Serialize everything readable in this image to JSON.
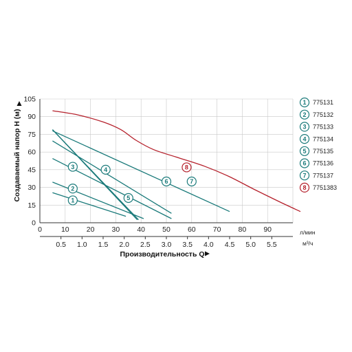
{
  "chart_data": {
    "type": "line",
    "title": "",
    "ylabel": "Создаваемый напор H (м)",
    "xlabel": "Производительность Q",
    "ylim": [
      0,
      105
    ],
    "xlim": [
      0,
      100
    ],
    "yticks": [
      "0",
      "15",
      "30",
      "45",
      "60",
      "75",
      "90",
      "105"
    ],
    "xticks_primary": {
      "unit": "л/мин",
      "values": [
        0,
        10,
        20,
        30,
        40,
        50,
        60,
        70,
        80,
        90
      ],
      "labels": [
        "0",
        "10",
        "20",
        "30",
        "40",
        "50",
        "60",
        "70",
        "80",
        "90"
      ]
    },
    "xticks_secondary": {
      "unit": "м³/ч",
      "values": [
        0.5,
        1.0,
        1.5,
        2.0,
        2.5,
        3.0,
        3.5,
        4.0,
        4.5,
        5.0,
        5.5
      ],
      "labels": [
        "0.5",
        "1.0",
        "1.5",
        "2.0",
        "2.5",
        "3.0",
        "3.5",
        "4.0",
        "4.5",
        "5.0",
        "5.5"
      ]
    },
    "grid": true,
    "legend_position": "right",
    "series": [
      {
        "name": "775131",
        "marker": "1",
        "color": "#1a7a7a",
        "marker_at": [
          13,
          19
        ],
        "points": [
          [
            5,
            25.5
          ],
          [
            34,
            5.5
          ]
        ]
      },
      {
        "name": "775132",
        "marker": "2",
        "color": "#1a7a7a",
        "marker_at": [
          13,
          29
        ],
        "points": [
          [
            5,
            34.5
          ],
          [
            41,
            3.5
          ]
        ]
      },
      {
        "name": "775133",
        "marker": "3",
        "color": "#1a7a7a",
        "marker_at": [
          13,
          47.5
        ],
        "points": [
          [
            5,
            79
          ],
          [
            39,
            2.5
          ]
        ]
      },
      {
        "name": "775134",
        "marker": "4",
        "color": "#1a7a7a",
        "marker_at": [
          26,
          45
        ],
        "points": [
          [
            5,
            54.5
          ],
          [
            52,
            3.5
          ]
        ]
      },
      {
        "name": "775135",
        "marker": "5",
        "color": "#1a7a7a",
        "marker_at": [
          35,
          21
        ],
        "points": [
          [
            5,
            79
          ],
          [
            38.5,
            2.5
          ]
        ]
      },
      {
        "name": "775136",
        "marker": "6",
        "color": "#1a7a7a",
        "marker_at": [
          50,
          35
        ],
        "points": [
          [
            5,
            69.5
          ],
          [
            52,
            8
          ]
        ]
      },
      {
        "name": "775137",
        "marker": "7",
        "color": "#1a7a7a",
        "marker_at": [
          60,
          35
        ],
        "points": [
          [
            5,
            78
          ],
          [
            75,
            9.5
          ]
        ]
      },
      {
        "name": "7751383",
        "marker": "8",
        "color": "#b5202b",
        "marker_at": [
          58,
          47
        ],
        "points": [
          [
            5,
            95
          ],
          [
            15,
            91.5
          ],
          [
            25,
            85.5
          ],
          [
            32,
            79
          ],
          [
            38,
            70
          ],
          [
            45,
            62
          ],
          [
            55,
            55
          ],
          [
            65,
            48
          ],
          [
            75,
            39
          ],
          [
            85,
            28
          ],
          [
            95,
            17.5
          ],
          [
            103,
            9.5
          ]
        ]
      }
    ]
  }
}
